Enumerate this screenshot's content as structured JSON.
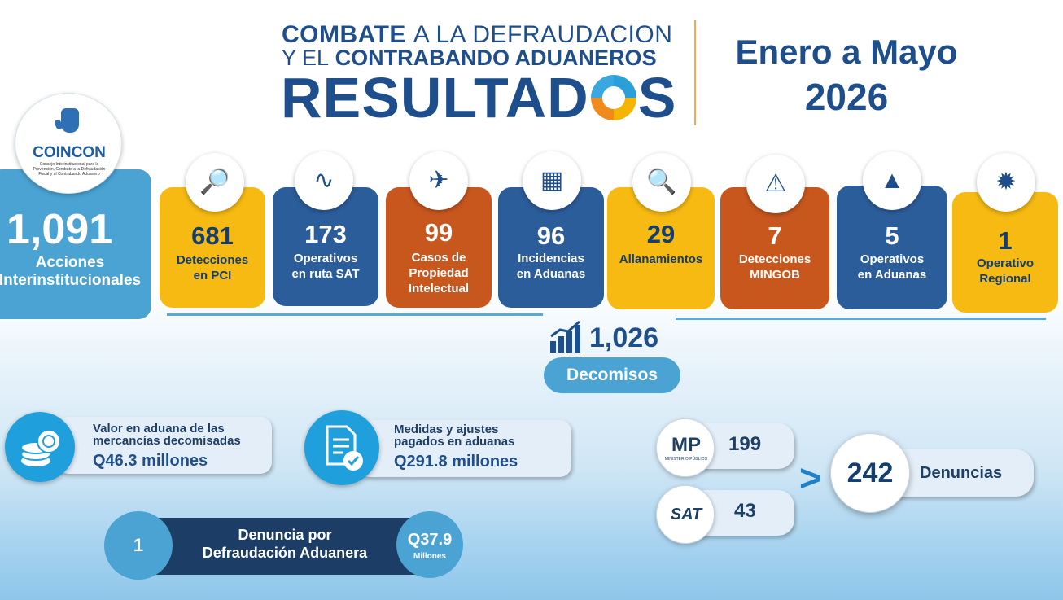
{
  "header": {
    "line1_bold": "COMBATE",
    "line1_rest": "A LA DEFRAUDACION",
    "line2_thin": "Y EL",
    "line2_bold": "CONTRABANDO ADUANEROS",
    "title_a": "RESULTAD",
    "title_b": "S",
    "period_line1": "Enero a Mayo",
    "period_line2": "2026"
  },
  "coincon": {
    "name": "COINCON",
    "subtitle": "Consejo Interinstitucional para la Prevención, Combate a la Defraudación Fiscal y al Contrabando Aduanero",
    "total": "1,091",
    "label_line1": "Acciones",
    "label_line2": "Interinstitucionales"
  },
  "stats": [
    {
      "value": "681",
      "line1": "Detecciones",
      "line2": "en PCI",
      "line3": "",
      "color": "#f6ba12",
      "icon": "search-chart-icon"
    },
    {
      "value": "173",
      "line1": "Operativos",
      "line2": "en ruta SAT",
      "line3": "",
      "color": "#2c5d9b",
      "icon": "road-icon"
    },
    {
      "value": "99",
      "line1": "Casos de",
      "line2": "Propiedad",
      "line3": "Intelectual",
      "color": "#c8571e",
      "icon": "transport-icon"
    },
    {
      "value": "96",
      "line1": "Incidencias",
      "line2": "en Aduanas",
      "line3": "",
      "color": "#2c5d9b",
      "icon": "container-icon"
    },
    {
      "value": "29",
      "line1": "Allanamientos",
      "line2": "",
      "line3": "",
      "color": "#f6ba12",
      "icon": "inspection-icon"
    },
    {
      "value": "7",
      "line1": "Detecciones",
      "line2": "MINGOB",
      "line3": "",
      "color": "#c8571e",
      "icon": "truck-warning-icon"
    },
    {
      "value": "5",
      "line1": "Operativos",
      "line2": "en Aduanas",
      "line3": "",
      "color": "#2c5d9b",
      "icon": "traffic-cone-icon"
    },
    {
      "value": "1",
      "line1": "Operativo",
      "line2": "Regional",
      "line3": "",
      "color": "#f6ba12",
      "icon": "central-america-map-icon"
    }
  ],
  "decomisos": {
    "value": "1,026",
    "label": "Decomisos"
  },
  "valor_aduana": {
    "line1": "Valor en aduana de las",
    "line2": "mercancías decomisadas",
    "amount": "Q46.3 millones"
  },
  "medidas": {
    "line1": "Medidas y ajustes",
    "line2": "pagados en aduanas",
    "amount": "Q291.8 millones"
  },
  "denuncia_defraudacion": {
    "count": "1",
    "line1": "Denuncia por",
    "line2": "Defraudación Aduanera",
    "amount": "Q37.9",
    "unit": "Millones"
  },
  "denuncias": {
    "mp_logo": "MP",
    "mp_sub": "MINISTERIO PÚBLICO",
    "mp_value": "199",
    "sat_logo": "SAT",
    "sat_value": "43",
    "symbol": ">",
    "total": "242",
    "label": "Denuncias"
  }
}
